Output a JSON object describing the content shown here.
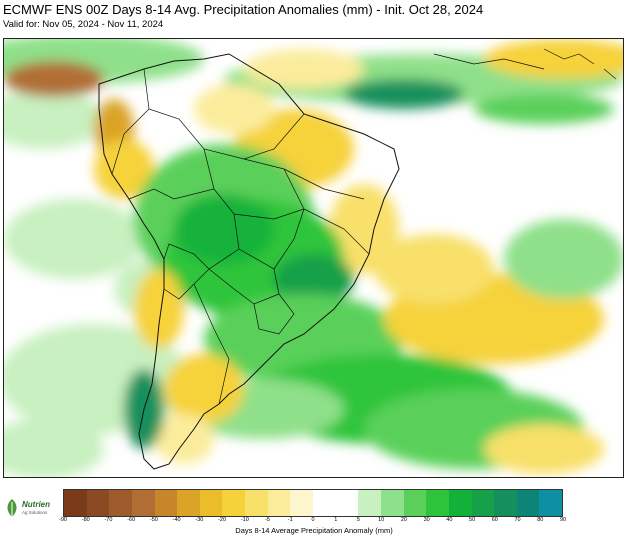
{
  "header": {
    "title": "ECMWF ENS 00Z Days 8-14 Avg. Precipitation Anomalies (mm) - Init. Oct 28, 2024",
    "subtitle": "Valid for: Nov 05, 2024 - Nov 11, 2024"
  },
  "map": {
    "region": "South America",
    "variable": "precipitation-anomaly",
    "units": "mm",
    "dominant_pattern": "wet (green) anomalies over central and southern Brazil, Paraguay, Uruguay and the adjacent South Atlantic; dry (yellow/brown) anomalies over the northern Andes, northeast Brazil and the central subtropical Atlantic"
  },
  "logo": {
    "name": "Nutrien",
    "tagline": "Ag Solutions",
    "colors": {
      "mark": "#4a9a3a",
      "text": "#2a6a2a"
    }
  },
  "legend": {
    "label": "Days 8-14 Average Precipitation Anomaly (mm)",
    "ticks": [
      "-90",
      "-80",
      "-70",
      "-60",
      "-50",
      "-40",
      "-30",
      "-20",
      "-10",
      "-5",
      "-1",
      "0",
      "1",
      "5",
      "10",
      "20",
      "30",
      "40",
      "50",
      "60",
      "70",
      "80",
      "90"
    ],
    "colors": [
      "#7a3b1a",
      "#8c4a22",
      "#9e5c2c",
      "#b16e34",
      "#c8862a",
      "#dba327",
      "#ecbd2b",
      "#f6d23a",
      "#f8e06a",
      "#fbec9c",
      "#fdf6cd",
      "#ffffff",
      "#ffffff",
      "#c8f0c0",
      "#8fe08a",
      "#5ad05a",
      "#2ec43a",
      "#12b23a",
      "#17a04a",
      "#15905c",
      "#0c8476",
      "#0f8fa4",
      "#10a0b8"
    ]
  }
}
